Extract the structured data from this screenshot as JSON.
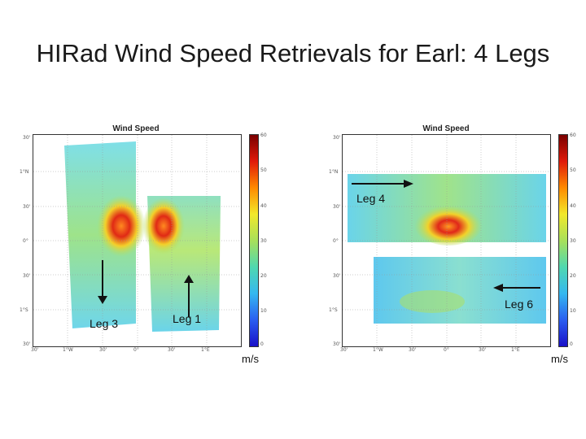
{
  "slide": {
    "title": "HIRad Wind Speed Retrievals for Earl: 4 Legs"
  },
  "left_panel": {
    "title": "Wind Speed",
    "y_ticks": [
      "30'",
      "1°N",
      "30'",
      "0°",
      "30'",
      "1°S",
      "30'"
    ],
    "x_ticks": [
      "30'",
      "1°W",
      "30'",
      "0°",
      "30'",
      "1°E"
    ],
    "colorbar_ticks": [
      "60",
      "50",
      "40",
      "30",
      "20",
      "10",
      "0"
    ],
    "unit": "m/s",
    "legs": [
      {
        "label": "Leg 3",
        "direction": "down"
      },
      {
        "label": "Leg 1",
        "direction": "up"
      }
    ]
  },
  "right_panel": {
    "title": "Wind Speed",
    "y_ticks": [
      "30'",
      "1°N",
      "30'",
      "0°",
      "30'",
      "1°S",
      "30'"
    ],
    "x_ticks": [
      "30'",
      "1°W",
      "30'",
      "0°",
      "30'",
      "1°E"
    ],
    "colorbar_ticks": [
      "60",
      "50",
      "40",
      "30",
      "20",
      "10",
      "0"
    ],
    "unit": "m/s",
    "legs": [
      {
        "label": "Leg 4",
        "direction": "right"
      },
      {
        "label": "Leg 6",
        "direction": "left"
      }
    ]
  },
  "colors": {
    "arrow": "#111111",
    "swath_base": "#5fd0e8",
    "storm_core": "#e0281a"
  }
}
